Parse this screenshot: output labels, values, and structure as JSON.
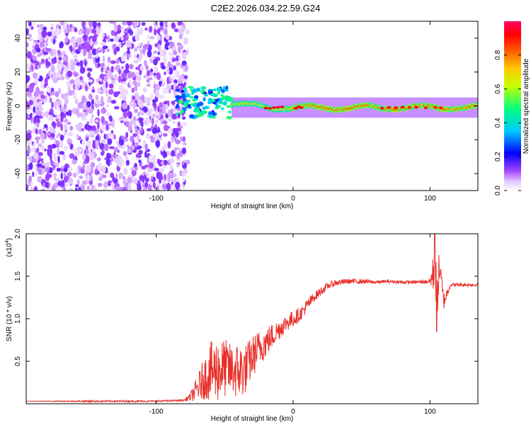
{
  "title": "C2E2.2026.034.22.59.G24",
  "chart_data": [
    {
      "type": "heatmap",
      "name": "spectrogram",
      "xlabel": "Height of straight line (km)",
      "ylabel": "Frequency (Hz)",
      "xlim": [
        -195,
        135
      ],
      "ylim": [
        -50,
        50
      ],
      "xticks": [
        -100,
        0,
        100
      ],
      "xtick_labels": [
        "-100",
        "0",
        "100"
      ],
      "yticks": [
        -40,
        -20,
        0,
        20,
        40
      ],
      "ytick_labels": [
        "-40",
        "-20",
        "0",
        "20",
        "40"
      ],
      "colorbar": {
        "label": "Normalized spectral amplitude",
        "range": [
          0,
          1
        ],
        "ticks": [
          0.0,
          0.2,
          0.4,
          0.6,
          0.8
        ],
        "tick_labels": [
          "0.0",
          "0.2",
          "0.4",
          "0.6",
          "0.8"
        ],
        "colormap": [
          "#ffffff",
          "#d9b3ff",
          "#8000ff",
          "#0000ff",
          "#00c8ff",
          "#00ff80",
          "#ffff00",
          "#ff8000",
          "#ff0000",
          "#ff0066"
        ]
      },
      "regions": [
        {
          "x_range": [
            -195,
            -85
          ],
          "description": "broadband noise",
          "freq_range": [
            -50,
            50
          ],
          "amplitude": 0.1
        },
        {
          "x_range": [
            -85,
            -45
          ],
          "description": "scattered signal",
          "freq_center": 2,
          "amplitude": 0.45
        },
        {
          "x_range": [
            -45,
            135
          ],
          "description": "narrow signal line",
          "freq_center": -1,
          "amplitude": 0.75
        }
      ]
    },
    {
      "type": "line",
      "name": "snr",
      "xlabel": "Height of straight line (km)",
      "ylabel": "SNR (10 * v/v)",
      "scale_label": "(x10",
      "scale_exponent": "4",
      "scale_suffix": ")",
      "xlim": [
        -195,
        135
      ],
      "ylim": [
        0,
        2.0
      ],
      "xticks": [
        -100,
        0,
        100
      ],
      "xtick_labels": [
        "-100",
        "0",
        "100"
      ],
      "yticks": [
        0.5,
        1.0,
        1.5,
        2.0
      ],
      "ytick_labels": [
        "0.5",
        "1.0",
        "1.5",
        "2.0"
      ],
      "line_color": "#e8302a",
      "series": [
        {
          "name": "SNR",
          "x": [
            -195,
            -150,
            -100,
            -80,
            -75,
            -70,
            -65,
            -60,
            -55,
            -50,
            -45,
            -40,
            -35,
            -30,
            -25,
            -20,
            -15,
            -10,
            -5,
            0,
            5,
            10,
            15,
            20,
            25,
            30,
            40,
            50,
            60,
            70,
            80,
            90,
            100,
            103,
            105,
            107,
            110,
            115,
            120,
            135
          ],
          "y": [
            0.03,
            0.03,
            0.03,
            0.04,
            0.08,
            0.18,
            0.3,
            0.38,
            0.4,
            0.42,
            0.4,
            0.38,
            0.4,
            0.55,
            0.65,
            0.72,
            0.8,
            0.88,
            0.95,
            1.0,
            1.05,
            1.15,
            1.25,
            1.32,
            1.38,
            1.42,
            1.44,
            1.44,
            1.43,
            1.44,
            1.43,
            1.43,
            1.44,
            1.55,
            1.3,
            1.6,
            1.2,
            1.4,
            1.4,
            1.4
          ],
          "noise": [
            0.0,
            0.01,
            0.01,
            0.01,
            0.05,
            0.15,
            0.25,
            0.35,
            0.38,
            0.35,
            0.3,
            0.35,
            0.3,
            0.25,
            0.22,
            0.18,
            0.15,
            0.12,
            0.1,
            0.1,
            0.08,
            0.08,
            0.06,
            0.05,
            0.04,
            0.04,
            0.03,
            0.03,
            0.02,
            0.02,
            0.02,
            0.02,
            0.03,
            0.3,
            0.35,
            0.2,
            0.1,
            0.02,
            0.02,
            0.02
          ]
        }
      ]
    }
  ]
}
